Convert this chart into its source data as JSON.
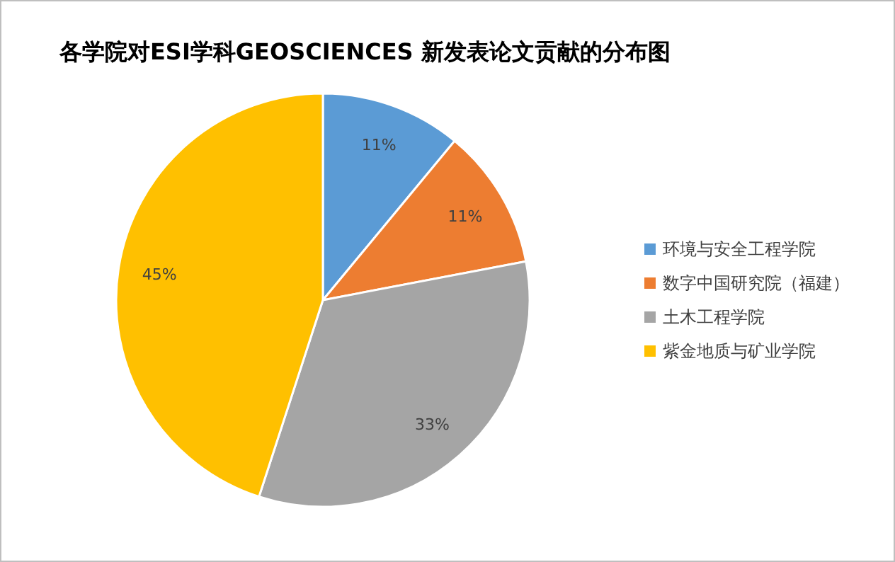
{
  "chart_data": {
    "type": "pie",
    "title": "各学院对ESI学科GEOSCIENCES 新发表论文贡献的分布图",
    "categories": [
      "环境与安全工程学院",
      "数字中国研究院（福建）",
      "土木工程学院",
      "紫金地质与矿业学院"
    ],
    "values": [
      11,
      11,
      33,
      45
    ],
    "value_labels": [
      "11%",
      "11%",
      "33%",
      "45%"
    ],
    "colors": [
      "#5b9bd5",
      "#ed7d31",
      "#a5a5a5",
      "#ffc000"
    ],
    "legend": "right"
  }
}
